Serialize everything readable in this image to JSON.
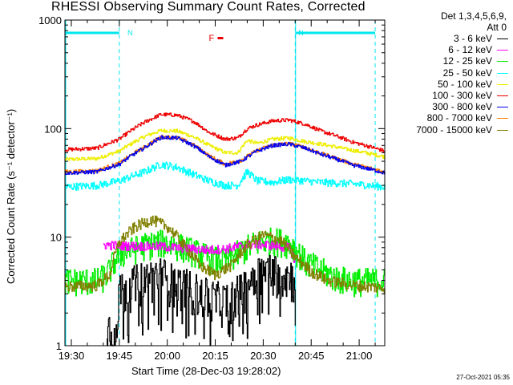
{
  "chart_data": {
    "type": "line",
    "title": "RHESSI Observing Summary Count Rates, Corrected",
    "xlabel": "Start Time (28-Dec-03 19:28:02)",
    "ylabel": "Corrected Count Rate (s⁻¹ detector⁻¹)",
    "yscale": "log",
    "ylim": [
      1,
      1000
    ],
    "xlim_minutes": [
      0,
      100
    ],
    "x_units": "minutes after 19:28:02",
    "x_ticks": [
      {
        "label": "19:30",
        "minute": 2
      },
      {
        "label": "19:45",
        "minute": 17
      },
      {
        "label": "20:00",
        "minute": 32
      },
      {
        "label": "20:15",
        "minute": 47
      },
      {
        "label": "20:30",
        "minute": 62
      },
      {
        "label": "20:45",
        "minute": 77
      },
      {
        "label": "21:00",
        "minute": 92
      }
    ],
    "y_ticks": [
      {
        "label": "1",
        "value": 1
      },
      {
        "label": "10",
        "value": 10
      },
      {
        "label": "100",
        "value": 100
      },
      {
        "label": "1000",
        "value": 1000
      }
    ],
    "legend_header": [
      "Det 1,3,4,5,6,9,",
      "Att 0"
    ],
    "flags": [
      {
        "label": "N",
        "color": "#00e5ee",
        "start_minute": 0,
        "end_minute": 17
      },
      {
        "label": "N",
        "color": "#00e5ee",
        "start_minute": 72,
        "end_minute": 97
      },
      {
        "label": "F",
        "color": "#ee0000",
        "minute": 50
      }
    ],
    "night_boundaries_minutes": [
      17,
      72
    ],
    "series": [
      {
        "name": "3 - 6 keV",
        "color": "#000000",
        "start_minute": 13,
        "end_minute": 72,
        "key_x": [
          13,
          16,
          17,
          25,
          30,
          33,
          40,
          45,
          50,
          55,
          60,
          65,
          68,
          71,
          72
        ],
        "key_y": [
          1.5,
          1.5,
          3.2,
          4.2,
          4.6,
          4.0,
          3.3,
          2.8,
          2.6,
          3.2,
          4.8,
          5.0,
          4.6,
          4.4,
          4.2
        ],
        "noise": 0.45,
        "dropouts": true
      },
      {
        "name": "6 - 12 keV",
        "color": "#ff00ff",
        "start_minute": 12,
        "end_minute": 72,
        "key_x": [
          12,
          20,
          30,
          40,
          45,
          50,
          55,
          60,
          65,
          70,
          72
        ],
        "key_y": [
          8.5,
          8.3,
          8.2,
          7.8,
          7.6,
          7.8,
          8.3,
          8.6,
          8.4,
          8.0,
          6.0
        ],
        "noise": 0.1
      },
      {
        "name": "12 - 25 keV",
        "color": "#00ee00",
        "start_minute": 0,
        "end_minute": 100,
        "key_x": [
          0,
          10,
          13,
          17,
          25,
          30,
          35,
          40,
          45,
          50,
          55,
          60,
          65,
          70,
          75,
          80,
          85,
          90,
          100
        ],
        "key_y": [
          4.0,
          4.0,
          4.5,
          7.0,
          8.5,
          9.0,
          8.5,
          7.5,
          6.5,
          6.0,
          7.5,
          9.0,
          9.5,
          9.0,
          6.0,
          5.0,
          4.2,
          4.0,
          4.0
        ],
        "noise": 0.3
      },
      {
        "name": "25 - 50 keV",
        "color": "#00ffff",
        "start_minute": 0,
        "end_minute": 100,
        "key_x": [
          0,
          10,
          17,
          25,
          30,
          35,
          40,
          45,
          50,
          54,
          57,
          60,
          65,
          70,
          75,
          80,
          90,
          100
        ],
        "key_y": [
          29,
          30,
          33,
          40,
          47,
          44,
          38,
          33,
          30,
          30,
          40,
          33,
          32,
          34,
          33,
          32,
          31,
          29
        ],
        "noise": 0.08
      },
      {
        "name": "50 - 100 keV",
        "color": "#eeee00",
        "start_minute": 0,
        "end_minute": 100,
        "key_x": [
          0,
          10,
          17,
          25,
          30,
          35,
          40,
          45,
          50,
          54,
          57,
          60,
          65,
          70,
          75,
          80,
          90,
          100
        ],
        "key_y": [
          52,
          53,
          62,
          85,
          96,
          95,
          84,
          70,
          60,
          60,
          78,
          73,
          80,
          82,
          76,
          72,
          63,
          55
        ],
        "noise": 0.04
      },
      {
        "name": "100 - 300 keV",
        "color": "#ee0000",
        "start_minute": 0,
        "end_minute": 100,
        "key_x": [
          0,
          10,
          17,
          25,
          30,
          35,
          40,
          45,
          50,
          54,
          57,
          60,
          65,
          70,
          75,
          80,
          90,
          100
        ],
        "key_y": [
          64,
          66,
          80,
          115,
          135,
          133,
          117,
          92,
          80,
          82,
          100,
          108,
          118,
          120,
          110,
          95,
          75,
          62
        ],
        "noise": 0.04
      },
      {
        "name": "300 - 800 keV",
        "color": "#0000ee",
        "start_minute": 0,
        "end_minute": 100,
        "key_x": [
          0,
          10,
          17,
          25,
          30,
          35,
          40,
          45,
          50,
          55,
          60,
          65,
          70,
          75,
          80,
          90,
          100
        ],
        "key_y": [
          39,
          40,
          47,
          67,
          83,
          82,
          70,
          55,
          46,
          50,
          62,
          70,
          72,
          66,
          58,
          46,
          39
        ],
        "noise": 0.04
      },
      {
        "name": "800 - 7000 keV",
        "color": "#ff7f00",
        "start_minute": 0,
        "end_minute": 100,
        "key_x": [
          0,
          10,
          17,
          25,
          30,
          35,
          40,
          45,
          50,
          55,
          60,
          65,
          70,
          75,
          80,
          90,
          100
        ],
        "key_y": [
          40,
          41,
          48,
          68,
          84,
          83,
          71,
          56,
          47,
          51,
          63,
          71,
          73,
          67,
          59,
          47,
          40
        ],
        "noise": 0.04
      },
      {
        "name": "7000 - 15000 keV",
        "color": "#808000",
        "start_minute": 0,
        "end_minute": 100,
        "key_x": [
          0,
          10,
          14,
          17,
          22,
          27,
          32,
          37,
          42,
          47,
          52,
          57,
          62,
          67,
          72,
          77,
          82,
          90,
          100
        ],
        "key_y": [
          3.5,
          3.6,
          4.5,
          9.0,
          12.5,
          14.5,
          12.5,
          8.5,
          5.5,
          4.5,
          5.5,
          8.5,
          10.5,
          9.5,
          6.5,
          4.8,
          4.0,
          3.6,
          3.4
        ],
        "noise": 0.12
      }
    ]
  },
  "footer": {
    "date": "27-Oct-2021 05:35"
  }
}
